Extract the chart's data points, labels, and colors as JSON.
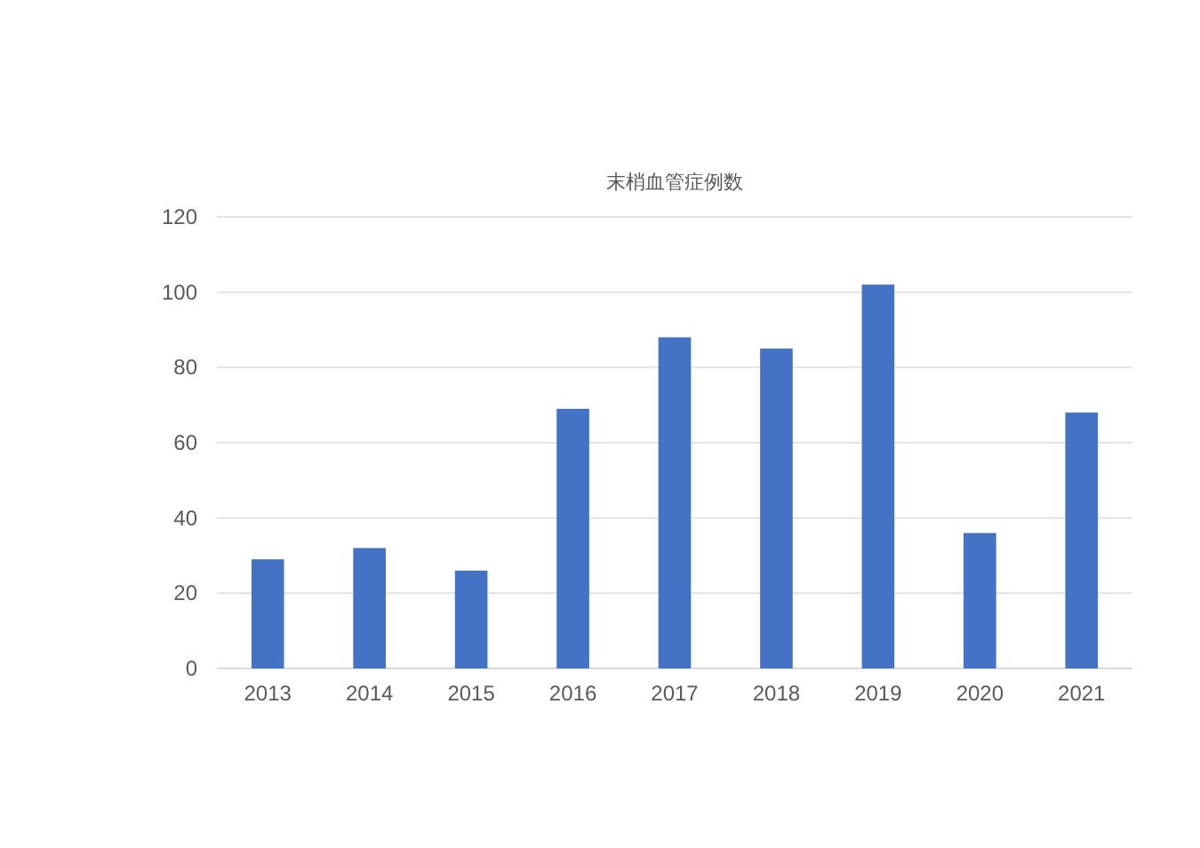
{
  "chart_data": {
    "type": "bar",
    "title": "末梢血管症例数",
    "categories": [
      "2013",
      "2014",
      "2015",
      "2016",
      "2017",
      "2018",
      "2019",
      "2020",
      "2021"
    ],
    "values": [
      29,
      32,
      26,
      69,
      88,
      85,
      102,
      36,
      68
    ],
    "color": "#4472c4",
    "ylim": [
      0,
      120
    ],
    "yticks": [
      0,
      20,
      40,
      60,
      80,
      100,
      120
    ],
    "grid": "y",
    "legend": false
  }
}
